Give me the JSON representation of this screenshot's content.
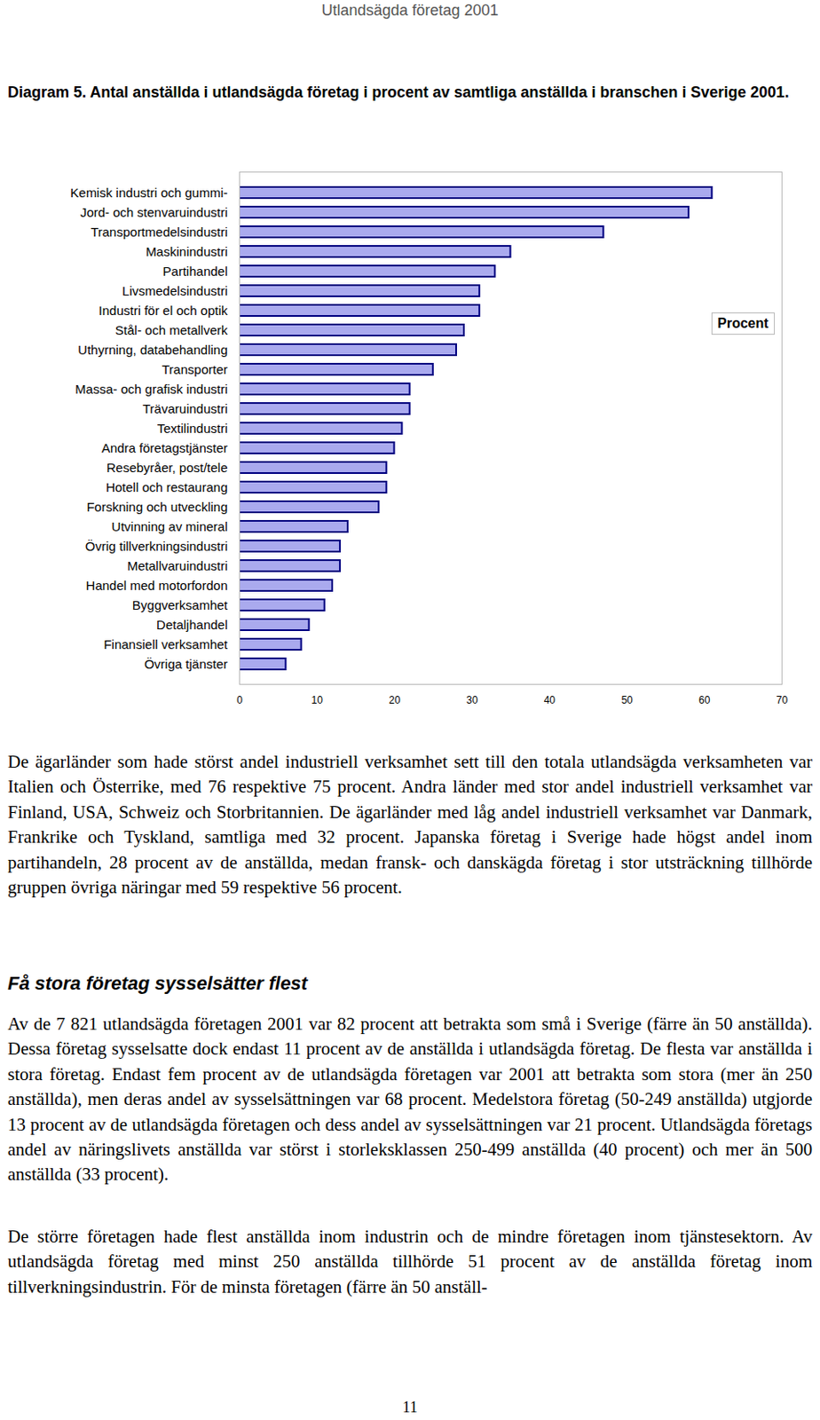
{
  "header": "Utlandsägda företag 2001",
  "chart_data": {
    "type": "bar",
    "title": "Diagram 5. Antal anställda i utlandsägda företag i procent av samtliga anställda i branschen i Sverige 2001.",
    "orientation": "horizontal",
    "categories": [
      "Kemisk industri och gummi-",
      "Jord- och stenvaruindustri",
      "Transportmedelsindustri",
      "Maskinindustri",
      "Partihandel",
      "Livsmedelsindustri",
      "Industri för el och optik",
      "Stål- och metallverk",
      "Uthyrning, databehandling",
      "Transporter",
      "Massa- och grafisk industri",
      "Trävaruindustri",
      "Textilindustri",
      "Andra företagstjänster",
      "Resebyråer, post/tele",
      "Hotell och restaurang",
      "Forskning och utveckling",
      "Utvinning av mineral",
      "Övrig tillverkningsindustri",
      "Metallvaruindustri",
      "Handel med motorfordon",
      "Byggverksamhet",
      "Detaljhandel",
      "Finansiell verksamhet",
      "Övriga tjänster"
    ],
    "series": [
      {
        "name": "Procent",
        "color": "#aaaaee",
        "values": [
          61,
          58,
          47,
          35,
          33,
          31,
          31,
          29,
          28,
          25,
          22,
          22,
          21,
          20,
          19,
          19,
          18,
          14,
          13,
          13,
          12,
          11,
          9,
          8,
          6
        ]
      }
    ],
    "xlim": [
      0,
      70
    ],
    "xticks": [
      0,
      10,
      20,
      30,
      40,
      50,
      60,
      70
    ],
    "grid": false,
    "legend": "right"
  },
  "body": [
    {
      "type": "paragraph",
      "text": "De ägarländer som hade störst andel industriell verksamhet sett till den totala utlandsägda verksamheten var Italien och Österrike, med 76 respektive 75 procent. Andra länder med stor andel industriell verksamhet var Finland, USA, Schweiz och Storbritannien. De ägarländer med låg andel industriell verksamhet var Danmark, Frankrike och Tyskland, samtliga med 32 procent. Japanska företag i Sverige hade högst andel inom partihandeln, 28 procent av de anställda, medan fransk- och danskägda företag i stor utsträckning tillhörde gruppen övriga näringar med 59 respektive 56 procent."
    },
    {
      "type": "heading",
      "text": "Få stora företag sysselsätter flest"
    },
    {
      "type": "paragraph",
      "text": "Av de 7 821 utlandsägda företagen 2001 var 82 procent att betrakta som små i Sverige (färre än 50 anställda). Dessa företag sysselsatte dock endast 11 procent av de anställda i utlandsägda företag. De flesta var anställda i stora företag. Endast fem procent av de utlandsägda företagen var 2001 att betrakta som stora (mer än 250 anställda), men deras andel av sysselsättningen var 68 procent. Medelstora företag (50-249 anställda) utgjorde 13 procent av de utlandsägda företagen och dess andel av sysselsättningen var 21 procent. Utlandsägda företags andel av näringslivets anställda var störst i storleksklassen 250-499 anställda (40 procent) och mer än 500 anställda (33 procent)."
    },
    {
      "type": "paragraph",
      "text": "De större företagen hade flest anställda inom industrin och de mindre företagen inom tjänstesektorn. Av utlandsägda företag med minst 250 anställda tillhörde 51 procent av de anställda företag inom tillverkningsindustrin. För de minsta företagen (färre än 50 anställ-"
    }
  ],
  "page_number": 11
}
